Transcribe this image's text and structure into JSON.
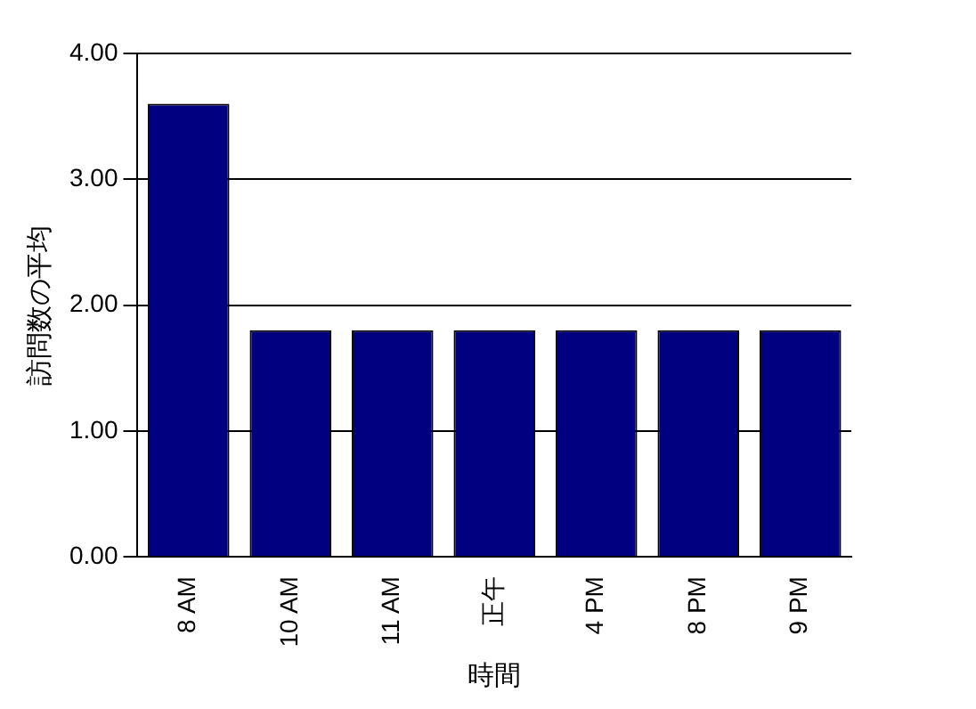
{
  "chart_data": {
    "type": "bar",
    "xlabel": "時間",
    "ylabel": "訪問数の平均",
    "categories": [
      "8 AM",
      "10 AM",
      "11 AM",
      "正午",
      "4 PM",
      "8 PM",
      "9 PM"
    ],
    "values": [
      3.6,
      1.8,
      1.8,
      1.8,
      1.8,
      1.8,
      1.8
    ],
    "color": "#000080",
    "ylim": [
      0,
      4
    ],
    "yticks": [
      {
        "value": 0,
        "label": "0.00"
      },
      {
        "value": 1,
        "label": "1.00"
      },
      {
        "value": 2,
        "label": "2.00"
      },
      {
        "value": 3,
        "label": "3.00"
      },
      {
        "value": 4,
        "label": "4.00"
      }
    ],
    "grid": "y",
    "legend": false
  }
}
